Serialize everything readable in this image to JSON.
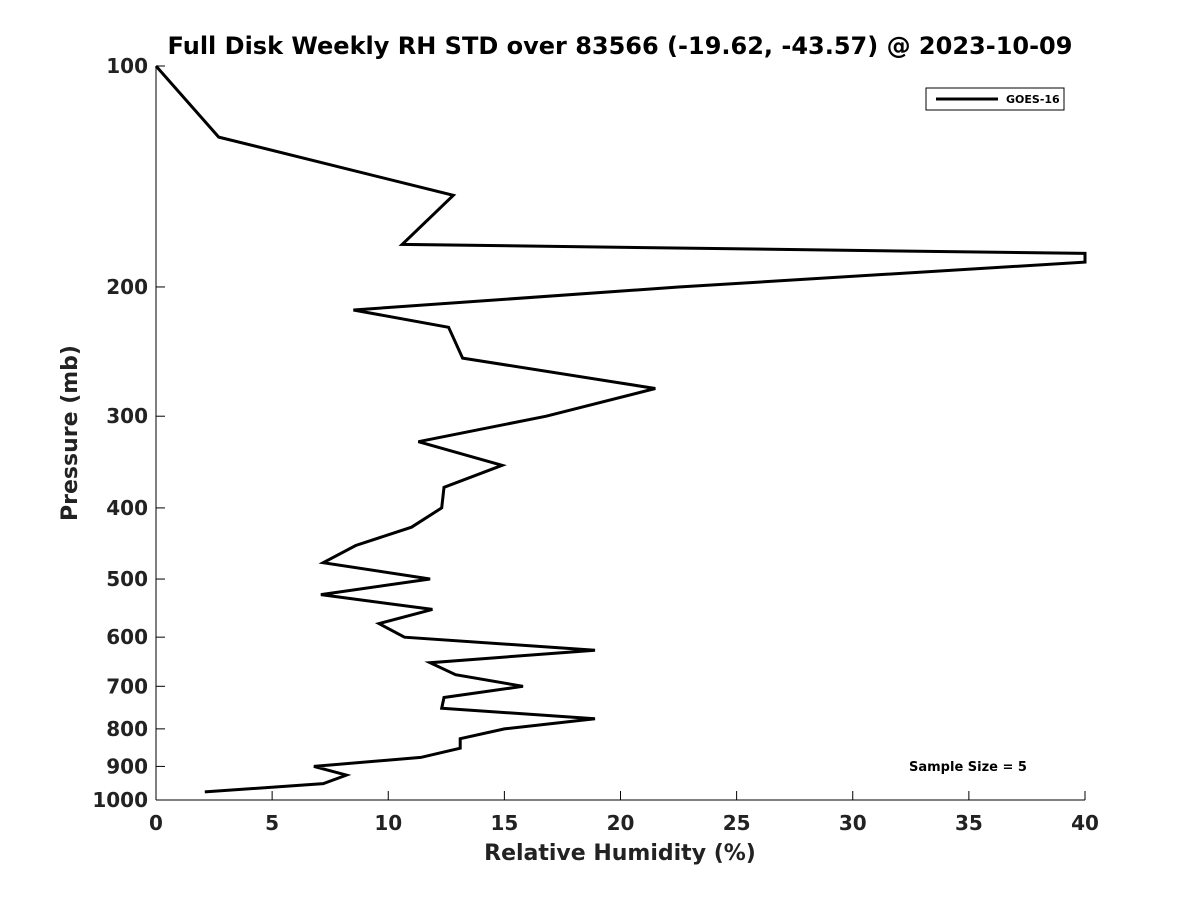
{
  "chart_data": {
    "type": "line",
    "title": "Full Disk Weekly RH STD over 83566 (-19.62, -43.57) @ 2023-10-09",
    "xlabel": "Relative Humidity (%)",
    "ylabel": "Pressure (mb)",
    "xlim": [
      0,
      40
    ],
    "ylim": [
      100,
      1000
    ],
    "yscale": "log",
    "yreversed": true,
    "xticks": [
      0,
      5,
      10,
      15,
      20,
      25,
      30,
      35,
      40
    ],
    "yticks": [
      100,
      200,
      300,
      400,
      500,
      600,
      700,
      800,
      900,
      1000
    ],
    "grid": false,
    "legend": {
      "location": "top-right"
    },
    "annotation": "Sample Size = 5",
    "series": [
      {
        "name": "GOES-16",
        "color": "#000000",
        "points": [
          [
            0.0,
            100
          ],
          [
            2.7,
            125
          ],
          [
            12.8,
            150
          ],
          [
            10.6,
            175
          ],
          [
            40.0,
            180
          ],
          [
            40.0,
            185
          ],
          [
            22.5,
            200
          ],
          [
            8.5,
            215
          ],
          [
            12.6,
            227
          ],
          [
            13.2,
            250
          ],
          [
            21.5,
            275
          ],
          [
            16.8,
            300
          ],
          [
            11.3,
            325
          ],
          [
            14.9,
            350
          ],
          [
            12.4,
            375
          ],
          [
            12.3,
            400
          ],
          [
            11.0,
            425
          ],
          [
            8.6,
            450
          ],
          [
            7.2,
            475
          ],
          [
            11.8,
            500
          ],
          [
            7.1,
            525
          ],
          [
            11.9,
            550
          ],
          [
            9.6,
            575
          ],
          [
            10.7,
            600
          ],
          [
            18.9,
            625
          ],
          [
            11.8,
            650
          ],
          [
            12.9,
            675
          ],
          [
            15.8,
            700
          ],
          [
            12.4,
            725
          ],
          [
            12.3,
            750
          ],
          [
            18.9,
            775
          ],
          [
            15.0,
            800
          ],
          [
            13.1,
            825
          ],
          [
            13.1,
            850
          ],
          [
            11.4,
            875
          ],
          [
            6.8,
            900
          ],
          [
            8.2,
            925
          ],
          [
            7.2,
            950
          ],
          [
            2.1,
            975
          ]
        ]
      }
    ]
  }
}
